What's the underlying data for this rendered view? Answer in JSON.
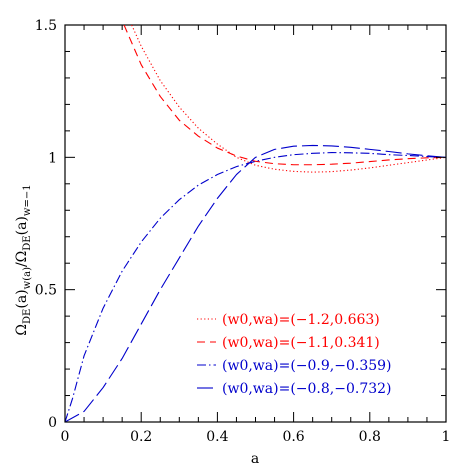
{
  "chart_data": {
    "type": "line",
    "xlabel": "a",
    "ylabel": "Ω_DE(a)_w(a) / Ω_DE(a)_w=−1",
    "xlim": [
      0,
      1
    ],
    "ylim": [
      0,
      1.5
    ],
    "x_ticks": [
      "0",
      "0.2",
      "0.4",
      "0.6",
      "0.8",
      "1"
    ],
    "y_ticks": [
      "0",
      "0.5",
      "1",
      "1.5"
    ],
    "grid": false,
    "legend_position": "bottom-right",
    "series": [
      {
        "name": "(w0,wa)=(−1.2,0.663)",
        "color": "#ff0000",
        "dash": "dotted",
        "x": [
          0.175,
          0.2,
          0.25,
          0.3,
          0.35,
          0.4,
          0.45,
          0.5,
          0.55,
          0.6,
          0.65,
          0.7,
          0.75,
          0.8,
          0.85,
          0.9,
          0.95,
          1.0
        ],
        "y": [
          1.5,
          1.42,
          1.29,
          1.19,
          1.11,
          1.05,
          1.0,
          0.97,
          0.955,
          0.947,
          0.944,
          0.946,
          0.952,
          0.96,
          0.97,
          0.98,
          0.99,
          1.0
        ]
      },
      {
        "name": "(w0,wa)=(−1.1,0.341)",
        "color": "#ff0000",
        "dash": "dashed",
        "x": [
          0.155,
          0.2,
          0.25,
          0.3,
          0.35,
          0.4,
          0.45,
          0.5,
          0.55,
          0.6,
          0.65,
          0.7,
          0.75,
          0.8,
          0.85,
          0.9,
          0.95,
          1.0
        ],
        "y": [
          1.5,
          1.35,
          1.23,
          1.14,
          1.08,
          1.035,
          1.005,
          0.985,
          0.976,
          0.972,
          0.972,
          0.974,
          0.978,
          0.984,
          0.99,
          0.995,
          0.998,
          1.0
        ]
      },
      {
        "name": "(w0,wa)=(−0.9,−0.359)",
        "color": "#0000cc",
        "dash": "dashdot",
        "x": [
          0.0,
          0.02,
          0.05,
          0.1,
          0.15,
          0.2,
          0.25,
          0.3,
          0.35,
          0.4,
          0.45,
          0.5,
          0.55,
          0.6,
          0.65,
          0.7,
          0.75,
          0.8,
          0.85,
          0.9,
          0.95,
          1.0
        ],
        "y": [
          0.0,
          0.09,
          0.25,
          0.43,
          0.57,
          0.68,
          0.77,
          0.84,
          0.895,
          0.935,
          0.965,
          0.985,
          1.0,
          1.01,
          1.015,
          1.018,
          1.017,
          1.015,
          1.01,
          1.007,
          1.003,
          1.0
        ]
      },
      {
        "name": "(w0,wa)=(−0.8,−0.732)",
        "color": "#0000cc",
        "dash": "longdash",
        "x": [
          0.0,
          0.05,
          0.1,
          0.15,
          0.2,
          0.25,
          0.3,
          0.35,
          0.4,
          0.45,
          0.5,
          0.55,
          0.6,
          0.65,
          0.7,
          0.75,
          0.8,
          0.85,
          0.9,
          0.95,
          1.0
        ],
        "y": [
          0.0,
          0.04,
          0.13,
          0.24,
          0.37,
          0.5,
          0.62,
          0.74,
          0.845,
          0.935,
          1.0,
          1.03,
          1.042,
          1.045,
          1.043,
          1.038,
          1.03,
          1.022,
          1.013,
          1.006,
          1.0
        ]
      }
    ]
  }
}
